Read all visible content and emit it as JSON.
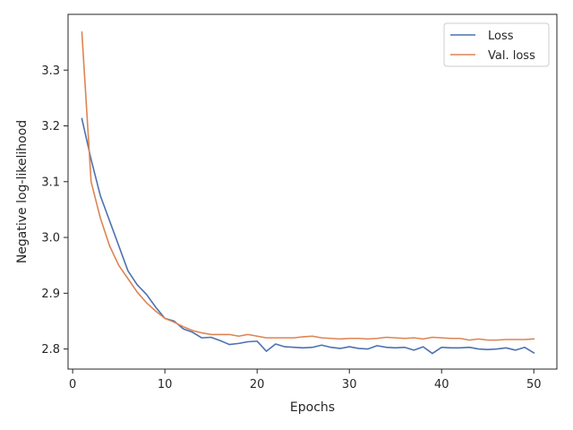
{
  "chart_data": {
    "type": "line",
    "xlabel": "Epochs",
    "ylabel": "Negative log-likelihood",
    "xlim": [
      -0.5,
      52.5
    ],
    "ylim": [
      2.764,
      3.4
    ],
    "xticks": [
      0,
      10,
      20,
      30,
      40,
      50
    ],
    "yticks": [
      2.8,
      2.9,
      3.0,
      3.1,
      3.2,
      3.3
    ],
    "x_tick_labels": [
      "0",
      "10",
      "20",
      "30",
      "40",
      "50"
    ],
    "y_tick_labels": [
      "2.8",
      "2.9",
      "3.0",
      "3.1",
      "3.2",
      "3.3"
    ],
    "grid": false,
    "legend_position": "top-right",
    "x": [
      1,
      2,
      3,
      4,
      5,
      6,
      7,
      8,
      9,
      10,
      11,
      12,
      13,
      14,
      15,
      16,
      17,
      18,
      19,
      20,
      21,
      22,
      23,
      24,
      25,
      26,
      27,
      28,
      29,
      30,
      31,
      32,
      33,
      34,
      35,
      36,
      37,
      38,
      39,
      40,
      41,
      42,
      43,
      44,
      45,
      46,
      47,
      48,
      49,
      50
    ],
    "series": [
      {
        "name": "Loss",
        "color": "#4c72b0",
        "values": [
          3.213,
          3.14,
          3.075,
          3.03,
          2.985,
          2.94,
          2.915,
          2.898,
          2.875,
          2.855,
          2.85,
          2.836,
          2.83,
          2.82,
          2.821,
          2.815,
          2.808,
          2.81,
          2.813,
          2.814,
          2.796,
          2.809,
          2.804,
          2.803,
          2.802,
          2.803,
          2.807,
          2.803,
          2.801,
          2.804,
          2.801,
          2.8,
          2.806,
          2.803,
          2.802,
          2.803,
          2.798,
          2.804,
          2.792,
          2.803,
          2.802,
          2.802,
          2.803,
          2.8,
          2.799,
          2.8,
          2.802,
          2.798,
          2.803,
          2.793
        ]
      },
      {
        "name": "Val. loss",
        "color": "#dd8452",
        "values": [
          3.368,
          3.1,
          3.035,
          2.985,
          2.95,
          2.926,
          2.902,
          2.883,
          2.868,
          2.855,
          2.848,
          2.84,
          2.833,
          2.829,
          2.826,
          2.826,
          2.826,
          2.823,
          2.826,
          2.823,
          2.82,
          2.82,
          2.82,
          2.82,
          2.822,
          2.823,
          2.82,
          2.819,
          2.818,
          2.819,
          2.819,
          2.818,
          2.819,
          2.821,
          2.82,
          2.819,
          2.82,
          2.818,
          2.821,
          2.82,
          2.819,
          2.819,
          2.816,
          2.818,
          2.816,
          2.816,
          2.817,
          2.817,
          2.817,
          2.818
        ]
      }
    ]
  }
}
